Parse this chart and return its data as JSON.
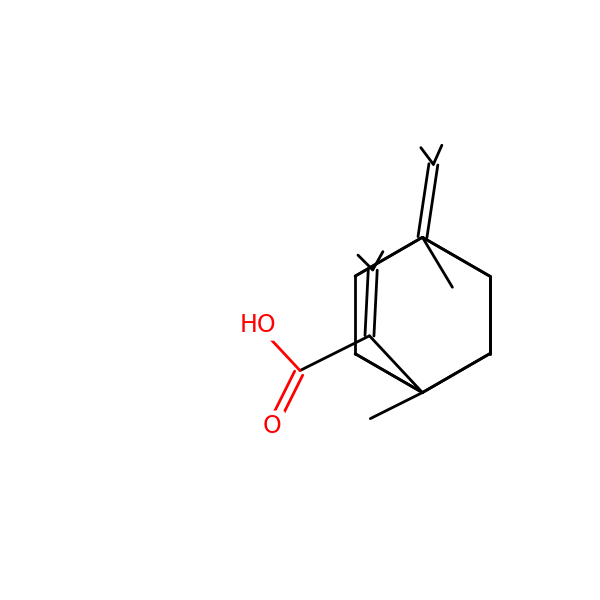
{
  "background": "#ffffff",
  "bond_color": "#000000",
  "red_color": "#ff0000",
  "bond_width": 2.0,
  "font_size_atom": 17,
  "fig_width": 6.0,
  "fig_height": 6.0,
  "dpi": 100,
  "xlim": [
    -1.5,
    8.5
  ],
  "ylim": [
    -1.0,
    8.5
  ]
}
